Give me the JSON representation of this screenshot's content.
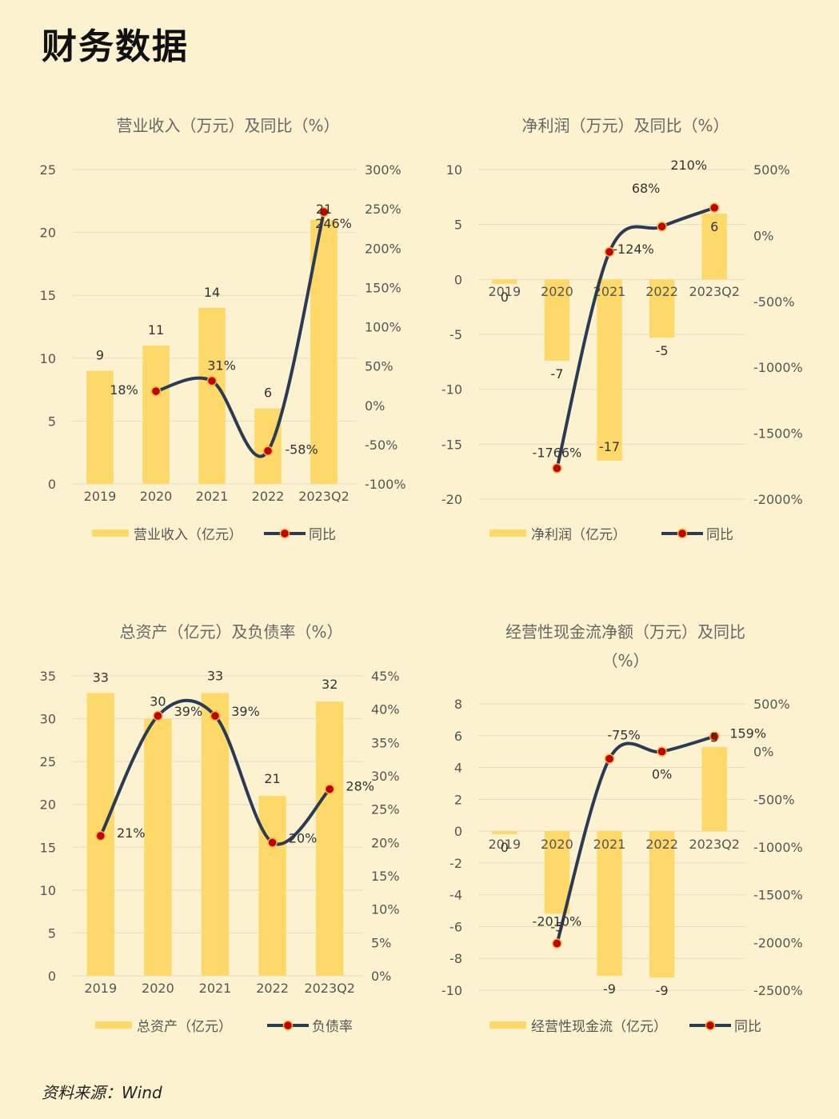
{
  "page": {
    "title": "财务数据",
    "source": "资料来源：Wind"
  },
  "colors": {
    "bar": "#fdd96a",
    "line": "#2b3a55",
    "marker": "#c00000",
    "marker_edge": "#f3b13b",
    "grid": "#e3dcc4",
    "axis_text": "#555555",
    "title_text": "#666666"
  },
  "chart_data": [
    {
      "type": "bar",
      "title": "营业收入（万元）及同比（%）",
      "categories": [
        "2019",
        "2020",
        "2021",
        "2022",
        "2023Q2"
      ],
      "series": [
        {
          "name": "营业收入（亿元）",
          "kind": "bar",
          "axis": "left",
          "values": [
            9,
            11,
            14,
            6,
            21
          ],
          "labels": [
            "9",
            "11",
            "14",
            "6",
            "21"
          ]
        },
        {
          "name": "同比",
          "kind": "line",
          "axis": "right",
          "values": [
            null,
            18,
            31,
            -58,
            246
          ],
          "labels": [
            null,
            "18%",
            "31%",
            "-58%",
            "246%"
          ]
        }
      ],
      "left_axis": {
        "min": 0,
        "max": 25,
        "step": 5,
        "ticks": [
          "0",
          "5",
          "10",
          "15",
          "20",
          "25"
        ]
      },
      "right_axis": {
        "min": -100,
        "max": 300,
        "step": 50,
        "ticks": [
          "-100%",
          "-50%",
          "0%",
          "50%",
          "100%",
          "150%",
          "200%",
          "250%",
          "300%"
        ]
      },
      "legend": [
        "营业收入（亿元）",
        "同比"
      ]
    },
    {
      "type": "bar",
      "title": "净利润（万元）及同比（%）",
      "categories": [
        "2019",
        "2020",
        "2021",
        "2022",
        "2023Q2"
      ],
      "series": [
        {
          "name": "净利润（亿元）",
          "kind": "bar",
          "axis": "left",
          "values": [
            -0.4,
            -7.4,
            -16.5,
            -5.3,
            6
          ],
          "labels": [
            "0",
            "-7",
            "-17",
            "-5",
            "6"
          ]
        },
        {
          "name": "同比",
          "kind": "line",
          "axis": "right",
          "values": [
            null,
            -1766,
            -124,
            68,
            210
          ],
          "labels": [
            null,
            "-1766%",
            "-124%",
            "68%",
            "210%"
          ]
        }
      ],
      "left_axis": {
        "min": -20,
        "max": 10,
        "step": 5,
        "ticks": [
          "-20",
          "-15",
          "-10",
          "-5",
          "0",
          "5",
          "10"
        ]
      },
      "right_axis": {
        "min": -2000,
        "max": 500,
        "step": 500,
        "ticks": [
          "-2000%",
          "-1500%",
          "-1000%",
          "-500%",
          "0%",
          "500%"
        ]
      },
      "legend": [
        "净利润（亿元）",
        "同比"
      ]
    },
    {
      "type": "bar",
      "title": "总资产（亿元）及负债率（%）",
      "categories": [
        "2019",
        "2020",
        "2021",
        "2022",
        "2023Q2"
      ],
      "series": [
        {
          "name": "总资产（亿元）",
          "kind": "bar",
          "axis": "left",
          "values": [
            33,
            30,
            33,
            21,
            32
          ],
          "labels": [
            "33",
            "30",
            "33",
            "21",
            "32"
          ]
        },
        {
          "name": "负债率",
          "kind": "line",
          "axis": "right",
          "values": [
            21,
            39,
            39,
            20,
            28
          ],
          "labels": [
            "21%",
            "39%",
            "39%",
            "20%",
            "28%"
          ]
        }
      ],
      "left_axis": {
        "min": 0,
        "max": 35,
        "step": 5,
        "ticks": [
          "0",
          "5",
          "10",
          "15",
          "20",
          "25",
          "30",
          "35"
        ]
      },
      "right_axis": {
        "min": 0,
        "max": 45,
        "step": 5,
        "ticks": [
          "0%",
          "5%",
          "10%",
          "15%",
          "20%",
          "25%",
          "30%",
          "35%",
          "40%",
          "45%"
        ]
      },
      "legend": [
        "总资产（亿元）",
        "负债率"
      ]
    },
    {
      "type": "bar",
      "title": "经营性现金流净额（万元）及同比（%）",
      "title_lines": [
        "经营性现金流净额（万元）及同比",
        "（%）"
      ],
      "categories": [
        "2019",
        "2020",
        "2021",
        "2022",
        "2023Q2"
      ],
      "series": [
        {
          "name": "经营性现金流（亿元）",
          "kind": "bar",
          "axis": "left",
          "values": [
            -0.2,
            -5.2,
            -9.1,
            -9.2,
            5.3
          ],
          "labels": [
            "0",
            "-5",
            "-9",
            "-9",
            "5"
          ]
        },
        {
          "name": "同比",
          "kind": "line",
          "axis": "right",
          "values": [
            null,
            -2010,
            -75,
            0,
            159
          ],
          "labels": [
            null,
            "-2010%",
            "-75%",
            "0%",
            "159%"
          ]
        }
      ],
      "left_axis": {
        "min": -10,
        "max": 8,
        "step": 2,
        "ticks": [
          "-10",
          "-8",
          "-6",
          "-4",
          "-2",
          "0",
          "2",
          "4",
          "6",
          "8"
        ]
      },
      "right_axis": {
        "min": -2500,
        "max": 500,
        "step": 500,
        "ticks": [
          "-2500%",
          "-2000%",
          "-1500%",
          "-1000%",
          "-500%",
          "0%",
          "500%"
        ]
      },
      "legend": [
        "经营性现金流（亿元）",
        "同比"
      ]
    }
  ]
}
